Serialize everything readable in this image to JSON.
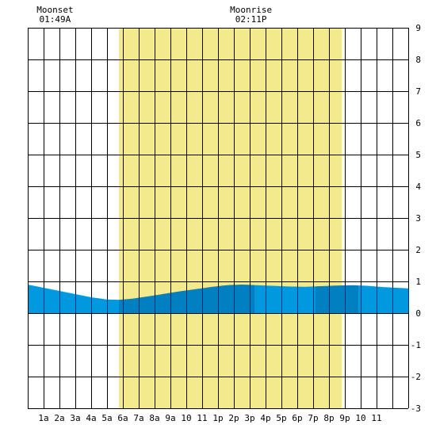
{
  "chart_data": {
    "type": "area",
    "x_ticks": [
      "1a",
      "2a",
      "3a",
      "4a",
      "5a",
      "6a",
      "7a",
      "8a",
      "9a",
      "10",
      "11",
      "1p",
      "2p",
      "3p",
      "4p",
      "5p",
      "6p",
      "7p",
      "8p",
      "9p",
      "10",
      "11"
    ],
    "y_ticks": [
      "9",
      "8",
      "7",
      "6",
      "5",
      "4",
      "3",
      "2",
      "1",
      "0",
      "-1",
      "-2",
      "-3"
    ],
    "xlim": [
      0,
      24
    ],
    "ylim": [
      -3,
      9
    ],
    "daylight": {
      "start_hour": 5.75,
      "end_hour": 19.8,
      "color": "#f2ea8c"
    },
    "tide_height": {
      "x": [
        0,
        1,
        2,
        3,
        4,
        5,
        5.75,
        6.5,
        7.5,
        8.5,
        9.5,
        10.5,
        11.5,
        12.5,
        13.5,
        14.5,
        15.5,
        16.5,
        17.5,
        18.5,
        19.5,
        20.5,
        21.5,
        22.5,
        24
      ],
      "y": [
        0.9,
        0.8,
        0.7,
        0.6,
        0.5,
        0.43,
        0.42,
        0.45,
        0.52,
        0.6,
        0.68,
        0.75,
        0.82,
        0.88,
        0.9,
        0.88,
        0.86,
        0.84,
        0.83,
        0.85,
        0.87,
        0.88,
        0.86,
        0.82,
        0.78
      ]
    },
    "tide_bands": [
      {
        "from": 0,
        "to": 5.75,
        "shade": "light"
      },
      {
        "from": 5.75,
        "to": 14.3,
        "shade": "dark"
      },
      {
        "from": 14.3,
        "to": 18.15,
        "shade": "light"
      },
      {
        "from": 18.15,
        "to": 20.85,
        "shade": "dark"
      },
      {
        "from": 20.85,
        "to": 24,
        "shade": "light"
      }
    ],
    "colors": {
      "light": "#0099e0",
      "dark": "#0080c0",
      "grid": "#000000"
    },
    "grid": true,
    "moon_events": [
      {
        "label": "Moonset",
        "time": "01:49A",
        "hour": 1.82
      },
      {
        "label": "Moonrise",
        "time": "02:11P",
        "hour": 14.18
      }
    ]
  }
}
